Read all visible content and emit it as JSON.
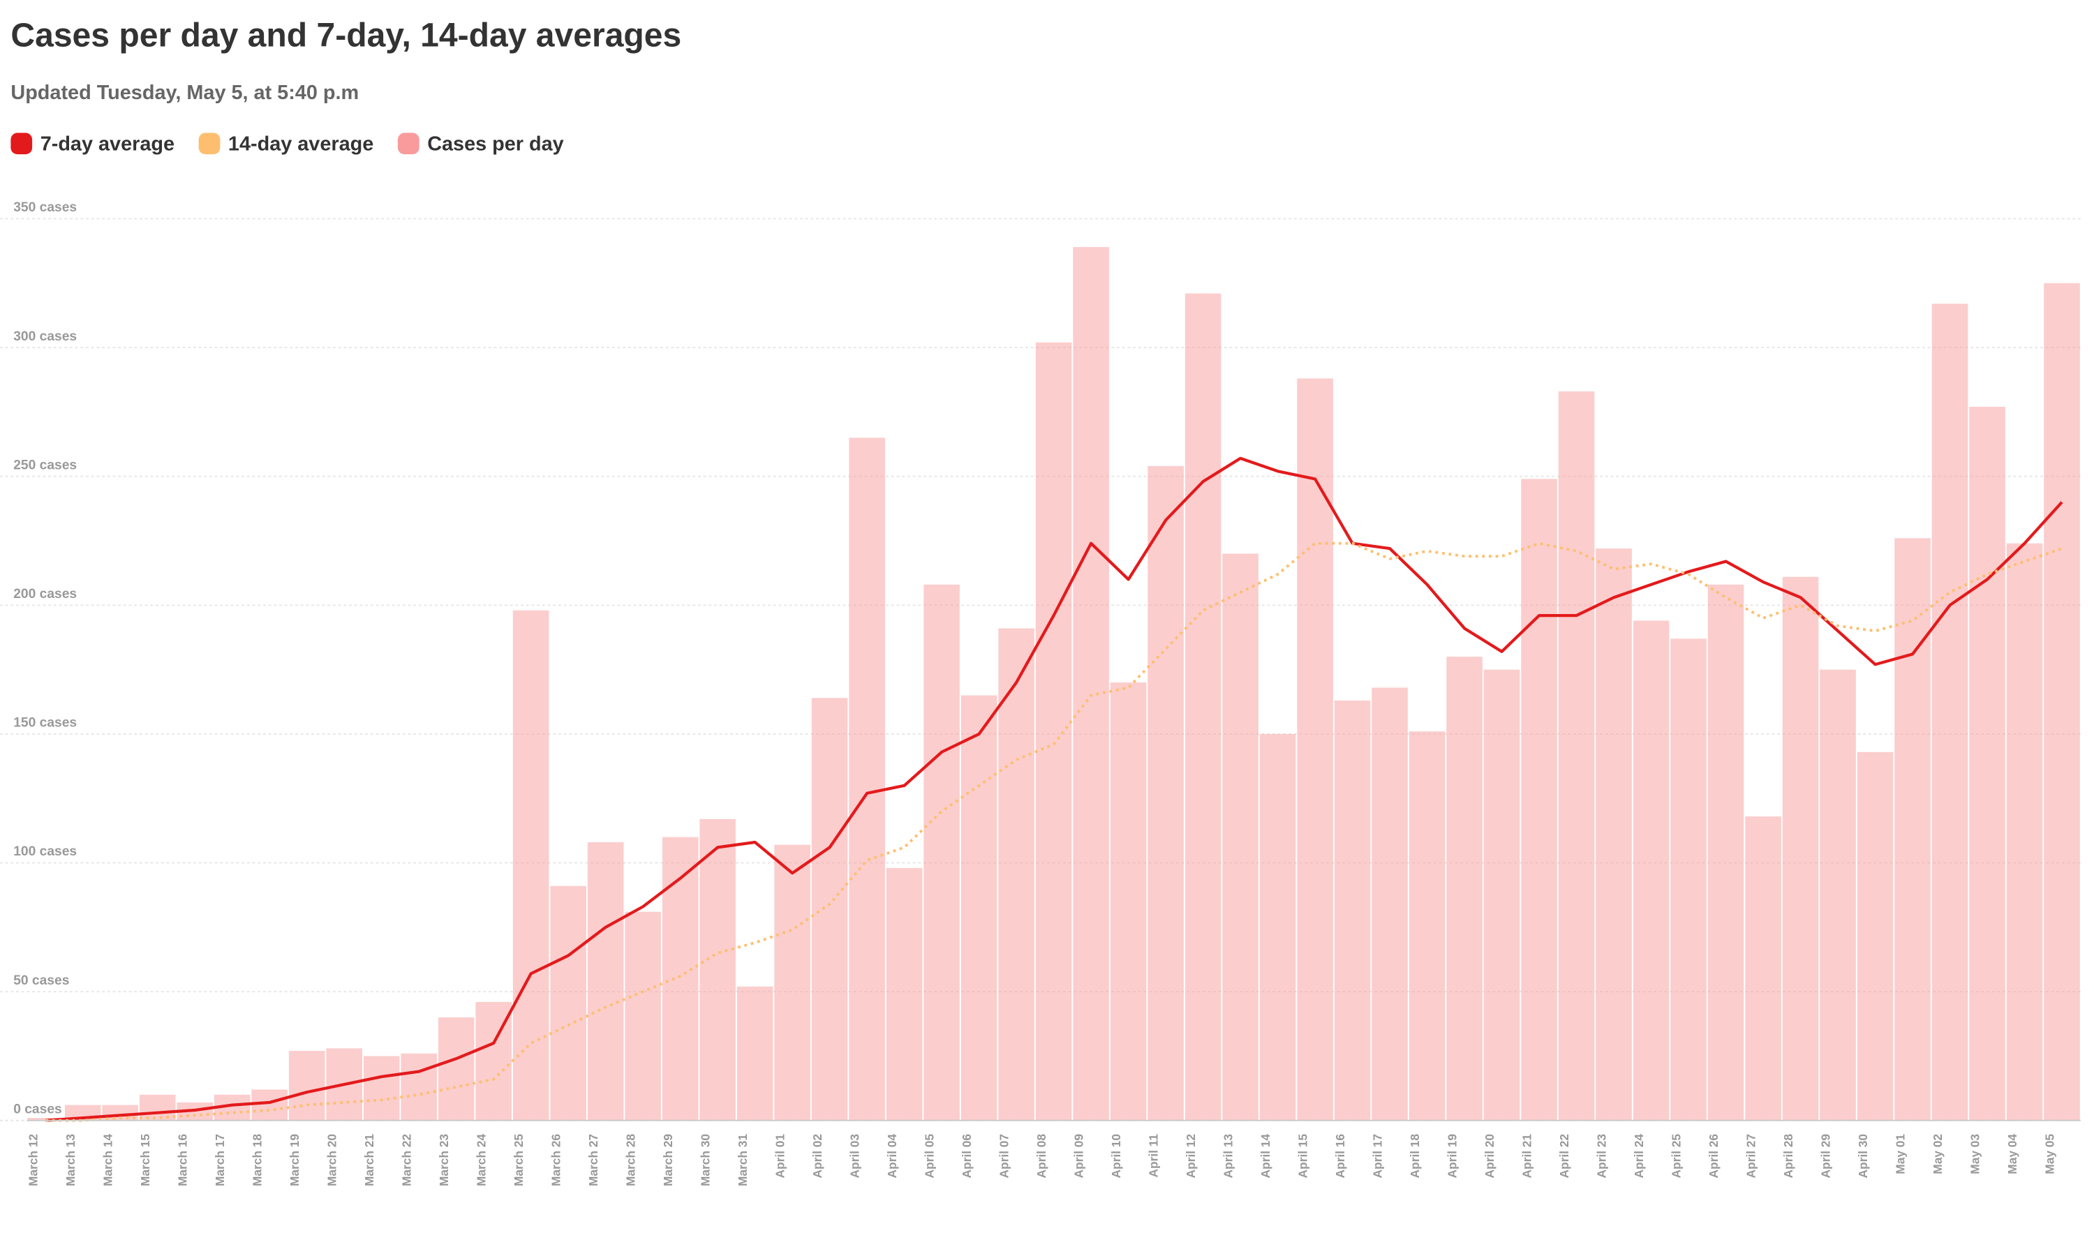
{
  "chart_data": {
    "type": "bar",
    "title": "Cases per day and 7-day, 14-day averages",
    "subtitle": "Updated Tuesday, May 5, at 5:40 p.m",
    "categories": [
      "March 12",
      "March 13",
      "March 14",
      "March 15",
      "March 16",
      "March 17",
      "March 18",
      "March 19",
      "March 20",
      "March 21",
      "March 22",
      "March 23",
      "March 24",
      "March 25",
      "March 26",
      "March 27",
      "March 28",
      "March 29",
      "March 30",
      "March 31",
      "April 01",
      "April 02",
      "April 03",
      "April 04",
      "April 05",
      "April 06",
      "April 07",
      "April 08",
      "April 09",
      "April 10",
      "April 11",
      "April 12",
      "April 13",
      "April 14",
      "April 15",
      "April 16",
      "April 17",
      "April 18",
      "April 19",
      "April 20",
      "April 21",
      "April 22",
      "April 23",
      "April 24",
      "April 25",
      "April 26",
      "April 27",
      "April 28",
      "April 29",
      "April 30",
      "May 01",
      "May 02",
      "May 03",
      "May 04",
      "May 05"
    ],
    "series": [
      {
        "name": "7-day average",
        "type": "line",
        "style": "solid",
        "color": "#e31a1c",
        "values": [
          0,
          1,
          2,
          3,
          4,
          6,
          7,
          11,
          14,
          17,
          19,
          24,
          30,
          57,
          64,
          75,
          83,
          94,
          106,
          108,
          96,
          106,
          127,
          130,
          143,
          150,
          170,
          196,
          224,
          210,
          233,
          248,
          257,
          252,
          249,
          224,
          222,
          208,
          191,
          182,
          196,
          196,
          203,
          208,
          213,
          217,
          209,
          203,
          190,
          177,
          181,
          200,
          210,
          224,
          240
        ]
      },
      {
        "name": "14-day average",
        "type": "line",
        "style": "dotted",
        "color": "#fdbf6f",
        "values": [
          0,
          0,
          1,
          1,
          2,
          3,
          4,
          6,
          7,
          8,
          10,
          13,
          16,
          30,
          37,
          44,
          50,
          56,
          65,
          69,
          74,
          84,
          101,
          106,
          120,
          130,
          140,
          146,
          165,
          168,
          183,
          198,
          205,
          212,
          224,
          224,
          218,
          221,
          219,
          219,
          224,
          221,
          214,
          216,
          212,
          203,
          195,
          200,
          192,
          190,
          194,
          205,
          212,
          217,
          222
        ]
      },
      {
        "name": "Cases per day",
        "type": "bar",
        "color": "#f99b9c",
        "values": [
          1,
          6,
          6,
          10,
          7,
          10,
          12,
          27,
          28,
          25,
          26,
          40,
          46,
          198,
          91,
          108,
          81,
          110,
          117,
          52,
          107,
          164,
          265,
          98,
          208,
          165,
          191,
          302,
          339,
          170,
          254,
          321,
          220,
          150,
          288,
          163,
          168,
          151,
          180,
          175,
          249,
          283,
          222,
          194,
          187,
          208,
          118,
          211,
          175,
          143,
          226,
          317,
          277,
          224,
          325
        ]
      }
    ],
    "ylim": [
      0,
      350
    ],
    "yticks": [
      {
        "value": 0,
        "label": "0 cases"
      },
      {
        "value": 50,
        "label": "50 cases"
      },
      {
        "value": 100,
        "label": "100 cases"
      },
      {
        "value": 150,
        "label": "150 cases"
      },
      {
        "value": 200,
        "label": "200 cases"
      },
      {
        "value": 250,
        "label": "250 cases"
      },
      {
        "value": 300,
        "label": "300 cases"
      },
      {
        "value": 350,
        "label": "350 cases"
      }
    ],
    "grid": true
  }
}
